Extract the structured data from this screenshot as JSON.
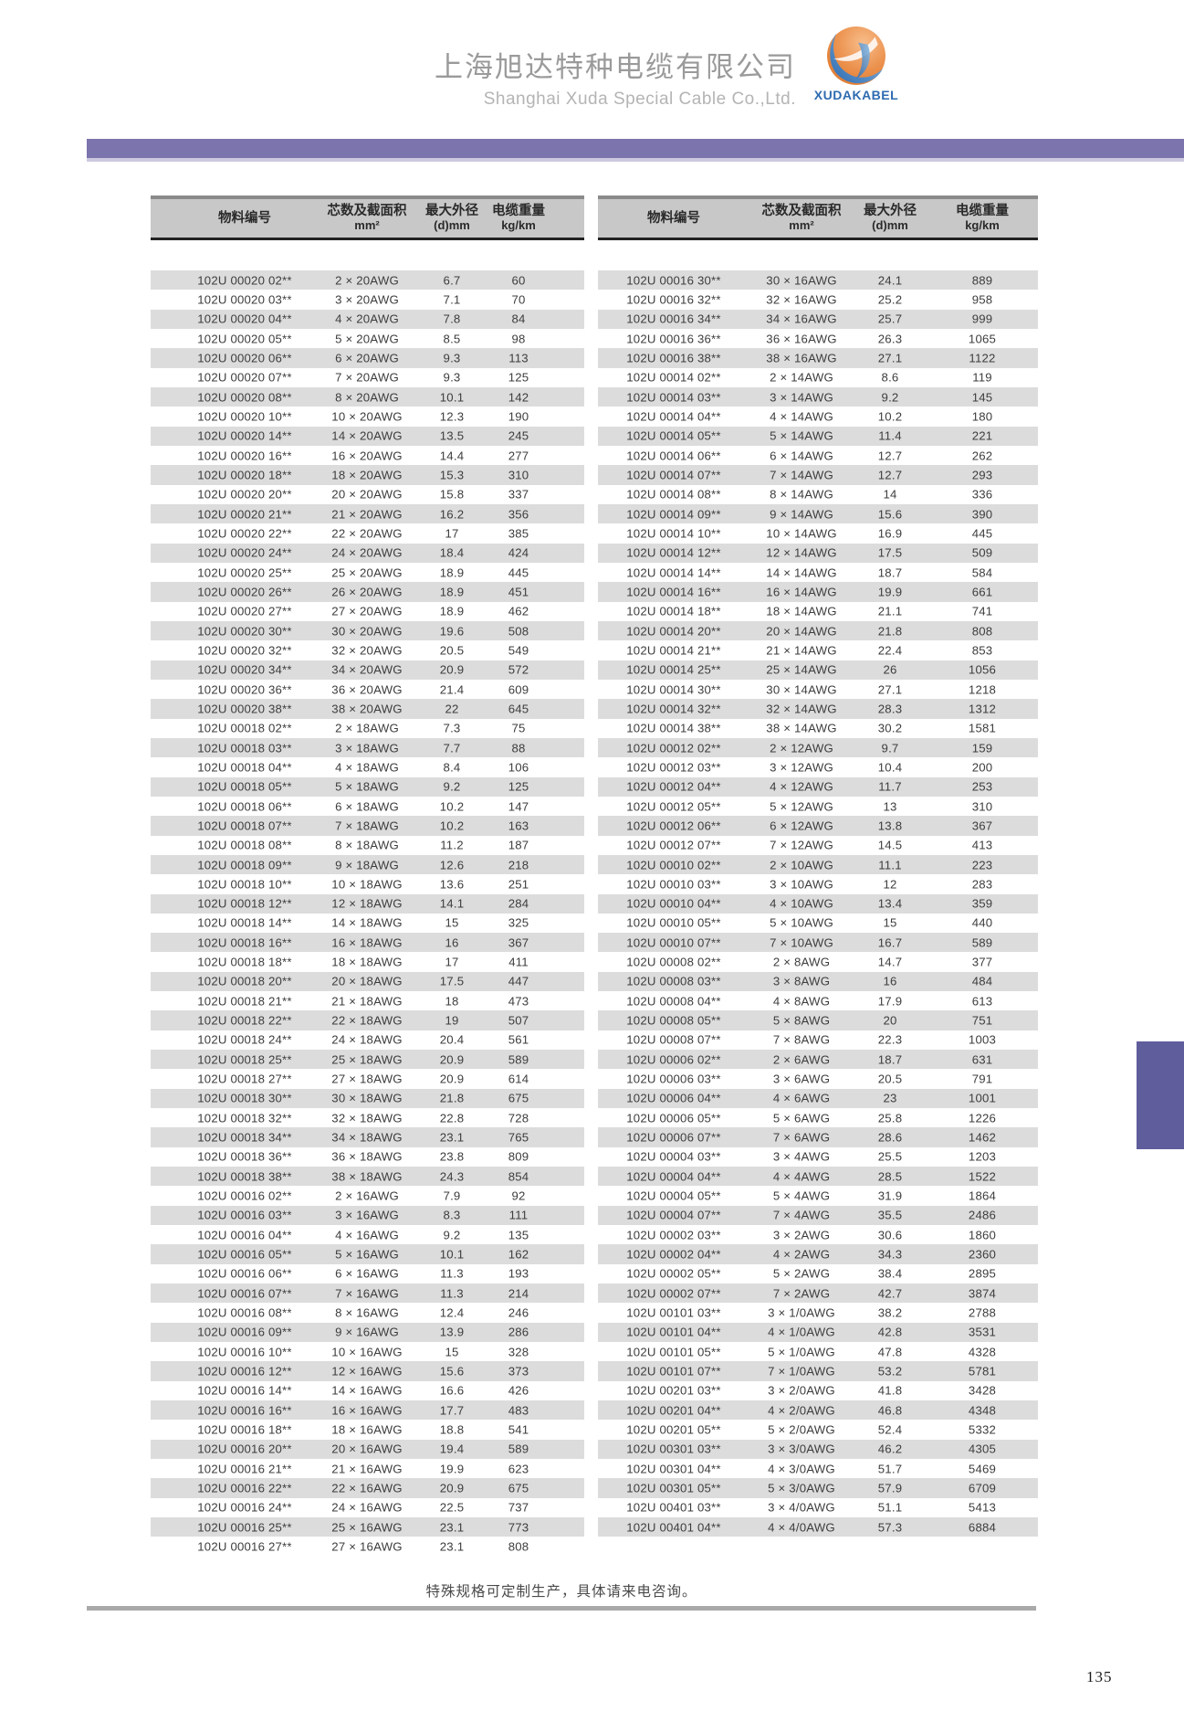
{
  "header": {
    "company_cn": "上海旭达特种电缆有限公司",
    "company_en": "Shanghai Xuda Special Cable Co.,Ltd.",
    "logo_text": "XUDAKABEL"
  },
  "columns": {
    "material_id": "物料编号",
    "spec_line1": "芯数及截面积",
    "spec_line2": "mm²",
    "dia_line1": "最大外径",
    "dia_line2": "(d)mm",
    "weight_line1": "电缆重量",
    "weight_line2": "kg/km"
  },
  "left_table_rows": [
    [
      "102U 00020 02**",
      "2 × 20AWG",
      "6.7",
      "60"
    ],
    [
      "102U 00020 03**",
      "3 × 20AWG",
      "7.1",
      "70"
    ],
    [
      "102U 00020 04**",
      "4 × 20AWG",
      "7.8",
      "84"
    ],
    [
      "102U 00020 05**",
      "5 × 20AWG",
      "8.5",
      "98"
    ],
    [
      "102U 00020 06**",
      "6 × 20AWG",
      "9.3",
      "113"
    ],
    [
      "102U 00020 07**",
      "7 × 20AWG",
      "9.3",
      "125"
    ],
    [
      "102U 00020 08**",
      "8 × 20AWG",
      "10.1",
      "142"
    ],
    [
      "102U 00020 10**",
      "10 × 20AWG",
      "12.3",
      "190"
    ],
    [
      "102U 00020 14**",
      "14 × 20AWG",
      "13.5",
      "245"
    ],
    [
      "102U 00020 16**",
      "16 × 20AWG",
      "14.4",
      "277"
    ],
    [
      "102U 00020 18**",
      "18 × 20AWG",
      "15.3",
      "310"
    ],
    [
      "102U 00020 20**",
      "20 × 20AWG",
      "15.8",
      "337"
    ],
    [
      "102U 00020 21**",
      "21 × 20AWG",
      "16.2",
      "356"
    ],
    [
      "102U 00020 22**",
      "22 × 20AWG",
      "17",
      "385"
    ],
    [
      "102U 00020 24**",
      "24 × 20AWG",
      "18.4",
      "424"
    ],
    [
      "102U 00020 25**",
      "25 × 20AWG",
      "18.9",
      "445"
    ],
    [
      "102U 00020 26**",
      "26 × 20AWG",
      "18.9",
      "451"
    ],
    [
      "102U 00020 27**",
      "27 × 20AWG",
      "18.9",
      "462"
    ],
    [
      "102U 00020 30**",
      "30 × 20AWG",
      "19.6",
      "508"
    ],
    [
      "102U 00020 32**",
      "32 × 20AWG",
      "20.5",
      "549"
    ],
    [
      "102U 00020 34**",
      "34 × 20AWG",
      "20.9",
      "572"
    ],
    [
      "102U 00020 36**",
      "36 × 20AWG",
      "21.4",
      "609"
    ],
    [
      "102U 00020 38**",
      "38 × 20AWG",
      "22",
      "645"
    ],
    [
      "102U 00018 02**",
      "2 × 18AWG",
      "7.3",
      "75"
    ],
    [
      "102U 00018 03**",
      "3 × 18AWG",
      "7.7",
      "88"
    ],
    [
      "102U 00018 04**",
      "4 × 18AWG",
      "8.4",
      "106"
    ],
    [
      "102U 00018 05**",
      "5 × 18AWG",
      "9.2",
      "125"
    ],
    [
      "102U 00018 06**",
      "6 × 18AWG",
      "10.2",
      "147"
    ],
    [
      "102U 00018 07**",
      "7 × 18AWG",
      "10.2",
      "163"
    ],
    [
      "102U 00018 08**",
      "8 × 18AWG",
      "11.2",
      "187"
    ],
    [
      "102U 00018 09**",
      "9 × 18AWG",
      "12.6",
      "218"
    ],
    [
      "102U 00018 10**",
      "10 × 18AWG",
      "13.6",
      "251"
    ],
    [
      "102U 00018 12**",
      "12 × 18AWG",
      "14.1",
      "284"
    ],
    [
      "102U 00018 14**",
      "14 × 18AWG",
      "15",
      "325"
    ],
    [
      "102U 00018 16**",
      "16 × 18AWG",
      "16",
      "367"
    ],
    [
      "102U 00018 18**",
      "18 × 18AWG",
      "17",
      "411"
    ],
    [
      "102U 00018 20**",
      "20 × 18AWG",
      "17.5",
      "447"
    ],
    [
      "102U 00018 21**",
      "21 × 18AWG",
      "18",
      "473"
    ],
    [
      "102U 00018 22**",
      "22 × 18AWG",
      "19",
      "507"
    ],
    [
      "102U 00018 24**",
      "24 × 18AWG",
      "20.4",
      "561"
    ],
    [
      "102U 00018 25**",
      "25 × 18AWG",
      "20.9",
      "589"
    ],
    [
      "102U 00018 27**",
      "27 × 18AWG",
      "20.9",
      "614"
    ],
    [
      "102U 00018 30**",
      "30 × 18AWG",
      "21.8",
      "675"
    ],
    [
      "102U 00018 32**",
      "32 × 18AWG",
      "22.8",
      "728"
    ],
    [
      "102U 00018 34**",
      "34 × 18AWG",
      "23.1",
      "765"
    ],
    [
      "102U 00018 36**",
      "36 × 18AWG",
      "23.8",
      "809"
    ],
    [
      "102U 00018 38**",
      "38 × 18AWG",
      "24.3",
      "854"
    ],
    [
      "102U 00016 02**",
      "2 × 16AWG",
      "7.9",
      "92"
    ],
    [
      "102U 00016 03**",
      "3 × 16AWG",
      "8.3",
      "111"
    ],
    [
      "102U 00016 04**",
      "4 × 16AWG",
      "9.2",
      "135"
    ],
    [
      "102U 00016 05**",
      "5 × 16AWG",
      "10.1",
      "162"
    ],
    [
      "102U 00016 06**",
      "6 × 16AWG",
      "11.3",
      "193"
    ],
    [
      "102U 00016 07**",
      "7 × 16AWG",
      "11.3",
      "214"
    ],
    [
      "102U 00016 08**",
      "8 × 16AWG",
      "12.4",
      "246"
    ],
    [
      "102U 00016 09**",
      "9 × 16AWG",
      "13.9",
      "286"
    ],
    [
      "102U 00016 10**",
      "10 × 16AWG",
      "15",
      "328"
    ],
    [
      "102U 00016 12**",
      "12 × 16AWG",
      "15.6",
      "373"
    ],
    [
      "102U 00016 14**",
      "14 × 16AWG",
      "16.6",
      "426"
    ],
    [
      "102U 00016 16**",
      "16 × 16AWG",
      "17.7",
      "483"
    ],
    [
      "102U 00016 18**",
      "18 × 16AWG",
      "18.8",
      "541"
    ],
    [
      "102U 00016 20**",
      "20 × 16AWG",
      "19.4",
      "589"
    ],
    [
      "102U 00016 21**",
      "21 × 16AWG",
      "19.9",
      "623"
    ],
    [
      "102U 00016 22**",
      "22 × 16AWG",
      "20.9",
      "675"
    ],
    [
      "102U 00016 24**",
      "24 × 16AWG",
      "22.5",
      "737"
    ],
    [
      "102U 00016 25**",
      "25 × 16AWG",
      "23.1",
      "773"
    ],
    [
      "102U 00016 27**",
      "27 × 16AWG",
      "23.1",
      "808"
    ]
  ],
  "right_table_rows": [
    [
      "102U 00016 30**",
      "30 × 16AWG",
      "24.1",
      "889"
    ],
    [
      "102U 00016 32**",
      "32 × 16AWG",
      "25.2",
      "958"
    ],
    [
      "102U 00016 34**",
      "34 × 16AWG",
      "25.7",
      "999"
    ],
    [
      "102U 00016 36**",
      "36 × 16AWG",
      "26.3",
      "1065"
    ],
    [
      "102U 00016 38**",
      "38 × 16AWG",
      "27.1",
      "1122"
    ],
    [
      "102U 00014 02**",
      "2 × 14AWG",
      "8.6",
      "119"
    ],
    [
      "102U 00014 03**",
      "3 × 14AWG",
      "9.2",
      "145"
    ],
    [
      "102U 00014 04**",
      "4 × 14AWG",
      "10.2",
      "180"
    ],
    [
      "102U 00014 05**",
      "5 × 14AWG",
      "11.4",
      "221"
    ],
    [
      "102U 00014 06**",
      "6 × 14AWG",
      "12.7",
      "262"
    ],
    [
      "102U 00014 07**",
      "7 × 14AWG",
      "12.7",
      "293"
    ],
    [
      "102U 00014 08**",
      "8 × 14AWG",
      "14",
      "336"
    ],
    [
      "102U 00014 09**",
      "9 × 14AWG",
      "15.6",
      "390"
    ],
    [
      "102U 00014 10**",
      "10 × 14AWG",
      "16.9",
      "445"
    ],
    [
      "102U 00014 12**",
      "12 × 14AWG",
      "17.5",
      "509"
    ],
    [
      "102U 00014 14**",
      "14 × 14AWG",
      "18.7",
      "584"
    ],
    [
      "102U 00014 16**",
      "16 × 14AWG",
      "19.9",
      "661"
    ],
    [
      "102U 00014 18**",
      "18 × 14AWG",
      "21.1",
      "741"
    ],
    [
      "102U 00014 20**",
      "20 × 14AWG",
      "21.8",
      "808"
    ],
    [
      "102U 00014 21**",
      "21 × 14AWG",
      "22.4",
      "853"
    ],
    [
      "102U 00014 25**",
      "25 × 14AWG",
      "26",
      "1056"
    ],
    [
      "102U 00014 30**",
      "30 × 14AWG",
      "27.1",
      "1218"
    ],
    [
      "102U 00014 32**",
      "32 × 14AWG",
      "28.3",
      "1312"
    ],
    [
      "102U 00014 38**",
      "38 × 14AWG",
      "30.2",
      "1581"
    ],
    [
      "102U 00012 02**",
      "2 × 12AWG",
      "9.7",
      "159"
    ],
    [
      "102U 00012 03**",
      "3 × 12AWG",
      "10.4",
      "200"
    ],
    [
      "102U 00012 04**",
      "4 × 12AWG",
      "11.7",
      "253"
    ],
    [
      "102U 00012 05**",
      "5 × 12AWG",
      "13",
      "310"
    ],
    [
      "102U 00012 06**",
      "6 × 12AWG",
      "13.8",
      "367"
    ],
    [
      "102U 00012 07**",
      "7 × 12AWG",
      "14.5",
      "413"
    ],
    [
      "102U 00010 02**",
      "2 × 10AWG",
      "11.1",
      "223"
    ],
    [
      "102U 00010 03**",
      "3 × 10AWG",
      "12",
      "283"
    ],
    [
      "102U 00010 04**",
      "4 × 10AWG",
      "13.4",
      "359"
    ],
    [
      "102U 00010 05**",
      "5 × 10AWG",
      "15",
      "440"
    ],
    [
      "102U 00010 07**",
      "7 × 10AWG",
      "16.7",
      "589"
    ],
    [
      "102U 00008 02**",
      "2 × 8AWG",
      "14.7",
      "377"
    ],
    [
      "102U 00008 03**",
      "3 × 8AWG",
      "16",
      "484"
    ],
    [
      "102U 00008 04**",
      "4 × 8AWG",
      "17.9",
      "613"
    ],
    [
      "102U 00008 05**",
      "5 × 8AWG",
      "20",
      "751"
    ],
    [
      "102U 00008 07**",
      "7 × 8AWG",
      "22.3",
      "1003"
    ],
    [
      "102U 00006 02**",
      "2 × 6AWG",
      "18.7",
      "631"
    ],
    [
      "102U 00006 03**",
      "3 × 6AWG",
      "20.5",
      "791"
    ],
    [
      "102U 00006 04**",
      "4 × 6AWG",
      "23",
      "1001"
    ],
    [
      "102U 00006 05**",
      "5 × 6AWG",
      "25.8",
      "1226"
    ],
    [
      "102U 00006 07**",
      "7 × 6AWG",
      "28.6",
      "1462"
    ],
    [
      "102U 00004 03**",
      "3 × 4AWG",
      "25.5",
      "1203"
    ],
    [
      "102U 00004 04**",
      "4 × 4AWG",
      "28.5",
      "1522"
    ],
    [
      "102U 00004 05**",
      "5 × 4AWG",
      "31.9",
      "1864"
    ],
    [
      "102U 00004 07**",
      "7 × 4AWG",
      "35.5",
      "2486"
    ],
    [
      "102U 00002 03**",
      "3 × 2AWG",
      "30.6",
      "1860"
    ],
    [
      "102U 00002 04**",
      "4 × 2AWG",
      "34.3",
      "2360"
    ],
    [
      "102U 00002 05**",
      "5 × 2AWG",
      "38.4",
      "2895"
    ],
    [
      "102U 00002 07**",
      "7 × 2AWG",
      "42.7",
      "3874"
    ],
    [
      "102U 00101 03**",
      "3 × 1/0AWG",
      "38.2",
      "2788"
    ],
    [
      "102U 00101 04**",
      "4 × 1/0AWG",
      "42.8",
      "3531"
    ],
    [
      "102U 00101 05**",
      "5 × 1/0AWG",
      "47.8",
      "4328"
    ],
    [
      "102U 00101 07**",
      "7 × 1/0AWG",
      "53.2",
      "5781"
    ],
    [
      "102U 00201 03**",
      "3 × 2/0AWG",
      "41.8",
      "3428"
    ],
    [
      "102U 00201 04**",
      "4 × 2/0AWG",
      "46.8",
      "4348"
    ],
    [
      "102U 00201 05**",
      "5 × 2/0AWG",
      "52.4",
      "5332"
    ],
    [
      "102U 00301 03**",
      "3 × 3/0AWG",
      "46.2",
      "4305"
    ],
    [
      "102U 00301 04**",
      "4 × 3/0AWG",
      "51.7",
      "5469"
    ],
    [
      "102U 00301 05**",
      "5 × 3/0AWG",
      "57.9",
      "6709"
    ],
    [
      "102U 00401 03**",
      "3 × 4/0AWG",
      "51.1",
      "5413"
    ],
    [
      "102U 00401 04**",
      "4 × 4/0AWG",
      "57.3",
      "6884"
    ]
  ],
  "footer": {
    "note": "特殊规格可定制生产，具体请来电咨询。",
    "page_number": "135"
  },
  "colors": {
    "purple_bar": "#7b74ad",
    "side_tab": "#5f5d9c",
    "table_header_bg": "#c8c8c8",
    "row_stripe": "#dcdcdc",
    "logo_blue": "#2e6bb0",
    "logo_orange": "#e07a2e"
  }
}
